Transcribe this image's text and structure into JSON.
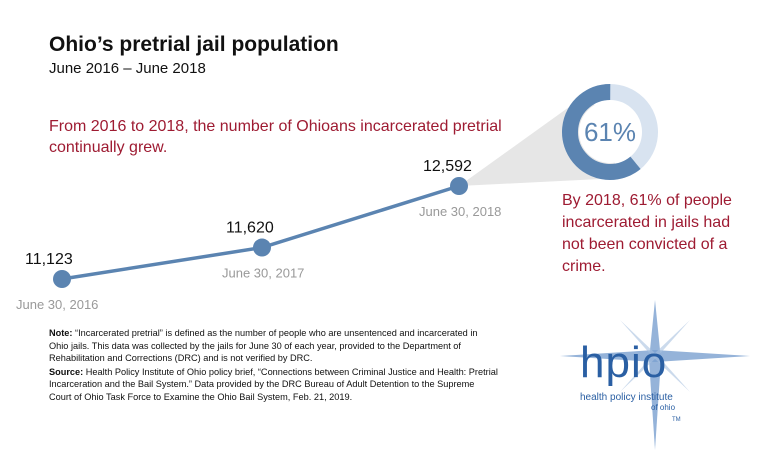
{
  "title": "Ohio’s pretrial jail population",
  "subtitle": "June 2016 – June 2018",
  "lead_text": "From 2016 to 2018, the number of Ohioans incarcerated pretrial continually grew.",
  "callout_text": "By 2018, 61% of people incarcerated in jails had not been convicted of a crime.",
  "colors": {
    "line": "#5b84b1",
    "accent": "#9e1b32",
    "donut_light": "#d8e3f0",
    "cone": "#e6e6e6"
  },
  "chart_data": [
    {
      "type": "line",
      "title": "",
      "x": [
        "June 30, 2016",
        "June 30, 2017",
        "June 30, 2018"
      ],
      "series": [
        {
          "values": [
            11123,
            11620,
            12592
          ]
        }
      ],
      "value_labels": [
        "11,123",
        "11,620",
        "12,592"
      ],
      "grid": false
    },
    {
      "type": "pie",
      "values": [
        61,
        39
      ],
      "center_label": "61%"
    }
  ],
  "note": {
    "note_label": "Note:",
    "note_text": "“Incarcerated pretrial” is defined as the number of people who are unsentenced and incarcerated in Ohio jails. This data was collected by the jails for June 30 of each year, provided to the Department of Rehabilitation and Corrections (DRC) and is not verified by DRC.",
    "source_label": "Source:",
    "source_text": "Health Policy Institute of Ohio policy brief, “Connections between Criminal Justice and Health: Pretrial Incarceration and the Bail System.” Data provided by the DRC Bureau of Adult Detention to the Supreme Court of Ohio Task Force to Examine the Ohio Bail System, Feb. 21, 2019."
  },
  "logo": {
    "word": "hpio",
    "tagline1": "health policy institute",
    "tagline2": "of ohio",
    "tm": "TM"
  }
}
